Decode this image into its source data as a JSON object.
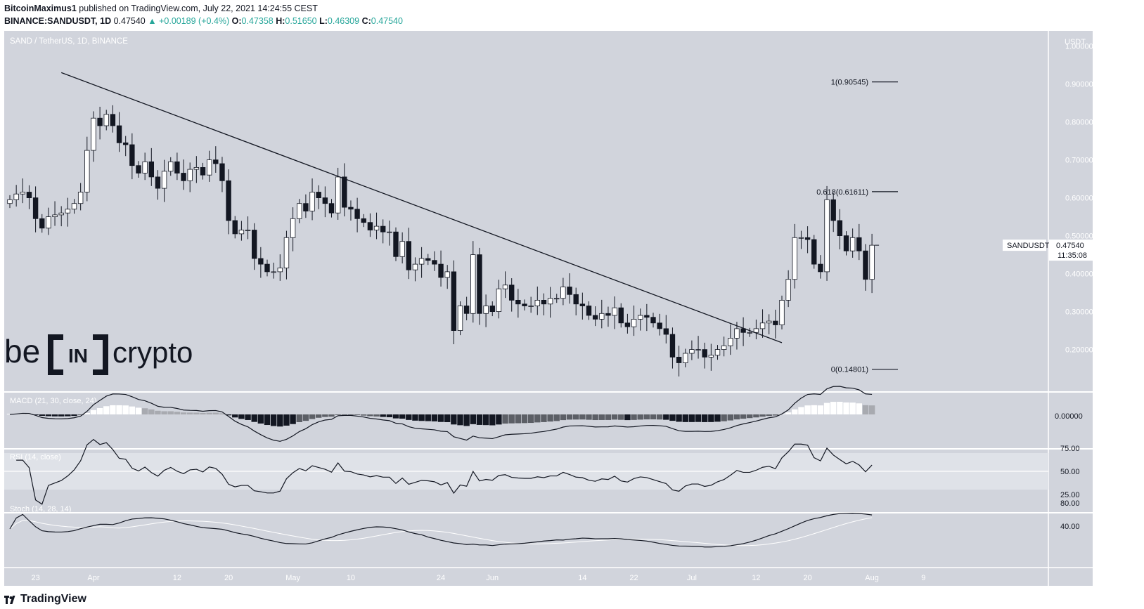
{
  "header": {
    "author": "BitcoinMaximus1",
    "published_text": "published on TradingView.com, July 22, 2021 14:24:55 CEST",
    "symbol_line": "BINANCE:SANDUSDT, 1D",
    "last": "0.47540",
    "change": "▲ +0.00189 (+0.4%)",
    "o_label": "O:",
    "o_value": "0.47358",
    "h_label": "H:",
    "h_value": "0.51650",
    "l_label": "L:",
    "l_value": "0.46309",
    "c_label": "C:",
    "c_value": "0.47540"
  },
  "pane_label": "SAND / TetherUS, 1D, BINANCE",
  "price_axis": {
    "unit": "USDT",
    "ticks": [
      "1.00000",
      "0.90000",
      "0.80000",
      "0.70000",
      "0.60000",
      "0.50000",
      "0.40000",
      "0.30000",
      "0.20000"
    ],
    "tick_values": [
      1.0,
      0.9,
      0.8,
      0.7,
      0.6,
      0.5,
      0.4,
      0.3,
      0.2
    ]
  },
  "last_price_tag": {
    "symbol": "SANDUSDT",
    "price": "0.47540",
    "countdown": "11:35:08"
  },
  "fib_levels": [
    {
      "label": "1(0.90545)",
      "value": 0.90545
    },
    {
      "label": "0.618(0.61611)",
      "value": 0.61611
    },
    {
      "label": "0(0.14801)",
      "value": 0.14801
    }
  ],
  "trendline": {
    "from": {
      "index": 8,
      "value": 0.93
    },
    "to": {
      "index": 120,
      "value": 0.218
    }
  },
  "time_axis": {
    "labels": [
      "23",
      "Apr",
      "12",
      "20",
      "May",
      "10",
      "24",
      "Jun",
      "14",
      "22",
      "Jul",
      "12",
      "20",
      "Aug",
      "9"
    ],
    "label_index": [
      4,
      13,
      26,
      34,
      44,
      53,
      67,
      75,
      89,
      97,
      106,
      116,
      124,
      134,
      142
    ]
  },
  "indicators": {
    "macd_label": "MACD (21, 30, close, 24)",
    "macd_ticks": [
      "0.00000"
    ],
    "rsi_label": "RSI (14, close)",
    "rsi_ticks": [
      "75.00",
      "50.00",
      "25.00"
    ],
    "stoch_label": "Stoch (14, 28, 14)",
    "stoch_ticks": [
      "80.00",
      "40.00"
    ]
  },
  "watermark": {
    "left": "be",
    "bracket": "IN",
    "right": "crypto"
  },
  "footer": {
    "brand": "TradingView"
  },
  "colors": {
    "background": "#d1d4dc",
    "candle_up_fill": "#ffffff",
    "candle_down_fill": "#131722",
    "candle_stroke": "#131722",
    "trendline": "#131722",
    "tag_bg": "#ffffff",
    "change_up": "#26a69a"
  },
  "chart_data": {
    "type": "candlestick",
    "title": "SAND / TetherUS, 1D, BINANCE",
    "xlabel": "",
    "ylabel": "USDT",
    "ylim": [
      0.09,
      1.04
    ],
    "close": [
      0.595,
      0.61,
      0.615,
      0.6,
      0.545,
      0.52,
      0.55,
      0.555,
      0.56,
      0.57,
      0.585,
      0.615,
      0.725,
      0.81,
      0.79,
      0.82,
      0.79,
      0.745,
      0.74,
      0.685,
      0.665,
      0.695,
      0.655,
      0.625,
      0.67,
      0.695,
      0.665,
      0.645,
      0.675,
      0.68,
      0.66,
      0.7,
      0.69,
      0.645,
      0.54,
      0.505,
      0.515,
      0.515,
      0.44,
      0.425,
      0.405,
      0.405,
      0.415,
      0.495,
      0.545,
      0.585,
      0.565,
      0.615,
      0.6,
      0.585,
      0.56,
      0.655,
      0.575,
      0.57,
      0.545,
      0.535,
      0.515,
      0.525,
      0.51,
      0.51,
      0.445,
      0.485,
      0.41,
      0.425,
      0.44,
      0.435,
      0.425,
      0.39,
      0.405,
      0.25,
      0.315,
      0.295,
      0.45,
      0.295,
      0.315,
      0.3,
      0.36,
      0.37,
      0.33,
      0.32,
      0.315,
      0.315,
      0.33,
      0.32,
      0.335,
      0.335,
      0.365,
      0.345,
      0.32,
      0.315,
      0.29,
      0.28,
      0.295,
      0.29,
      0.31,
      0.27,
      0.26,
      0.28,
      0.29,
      0.285,
      0.27,
      0.255,
      0.24,
      0.18,
      0.165,
      0.19,
      0.2,
      0.2,
      0.18,
      0.185,
      0.2,
      0.21,
      0.23,
      0.255,
      0.245,
      0.245,
      0.255,
      0.27,
      0.275,
      0.265,
      0.33,
      0.385,
      0.495,
      0.495,
      0.49,
      0.425,
      0.405,
      0.595,
      0.54,
      0.5,
      0.46,
      0.495,
      0.46,
      0.385,
      0.475
    ],
    "series": [
      {
        "name": "MACD histogram"
      },
      {
        "name": "RSI"
      },
      {
        "name": "Stoch"
      }
    ]
  }
}
